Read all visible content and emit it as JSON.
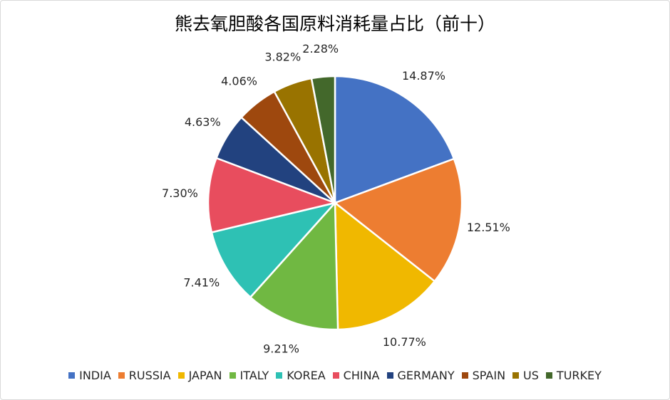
{
  "chart_data": {
    "type": "pie",
    "title": "熊去氧胆酸各国原料消耗量占比（前十）",
    "categories": [
      "INDIA",
      "RUSSIA",
      "JAPAN",
      "ITALY",
      "KOREA",
      "CHINA",
      "GERMANY",
      "SPAIN",
      "US",
      "TURKEY"
    ],
    "values": [
      14.87,
      12.51,
      10.77,
      9.21,
      7.41,
      7.3,
      4.63,
      4.06,
      3.82,
      2.28
    ],
    "data_labels": [
      "14.87%",
      "12.51%",
      "10.77%",
      "9.21%",
      "7.41%",
      "7.30%",
      "4.63%",
      "4.06%",
      "3.82%",
      "2.28%"
    ],
    "colors": [
      "#4472C4",
      "#ED7D31",
      "#F0B800",
      "#70B842",
      "#2EC1B4",
      "#E84D5E",
      "#22427F",
      "#9E480E",
      "#997300",
      "#43682B"
    ],
    "legend_position": "bottom",
    "start_angle_deg": 0,
    "direction": "clockwise"
  }
}
